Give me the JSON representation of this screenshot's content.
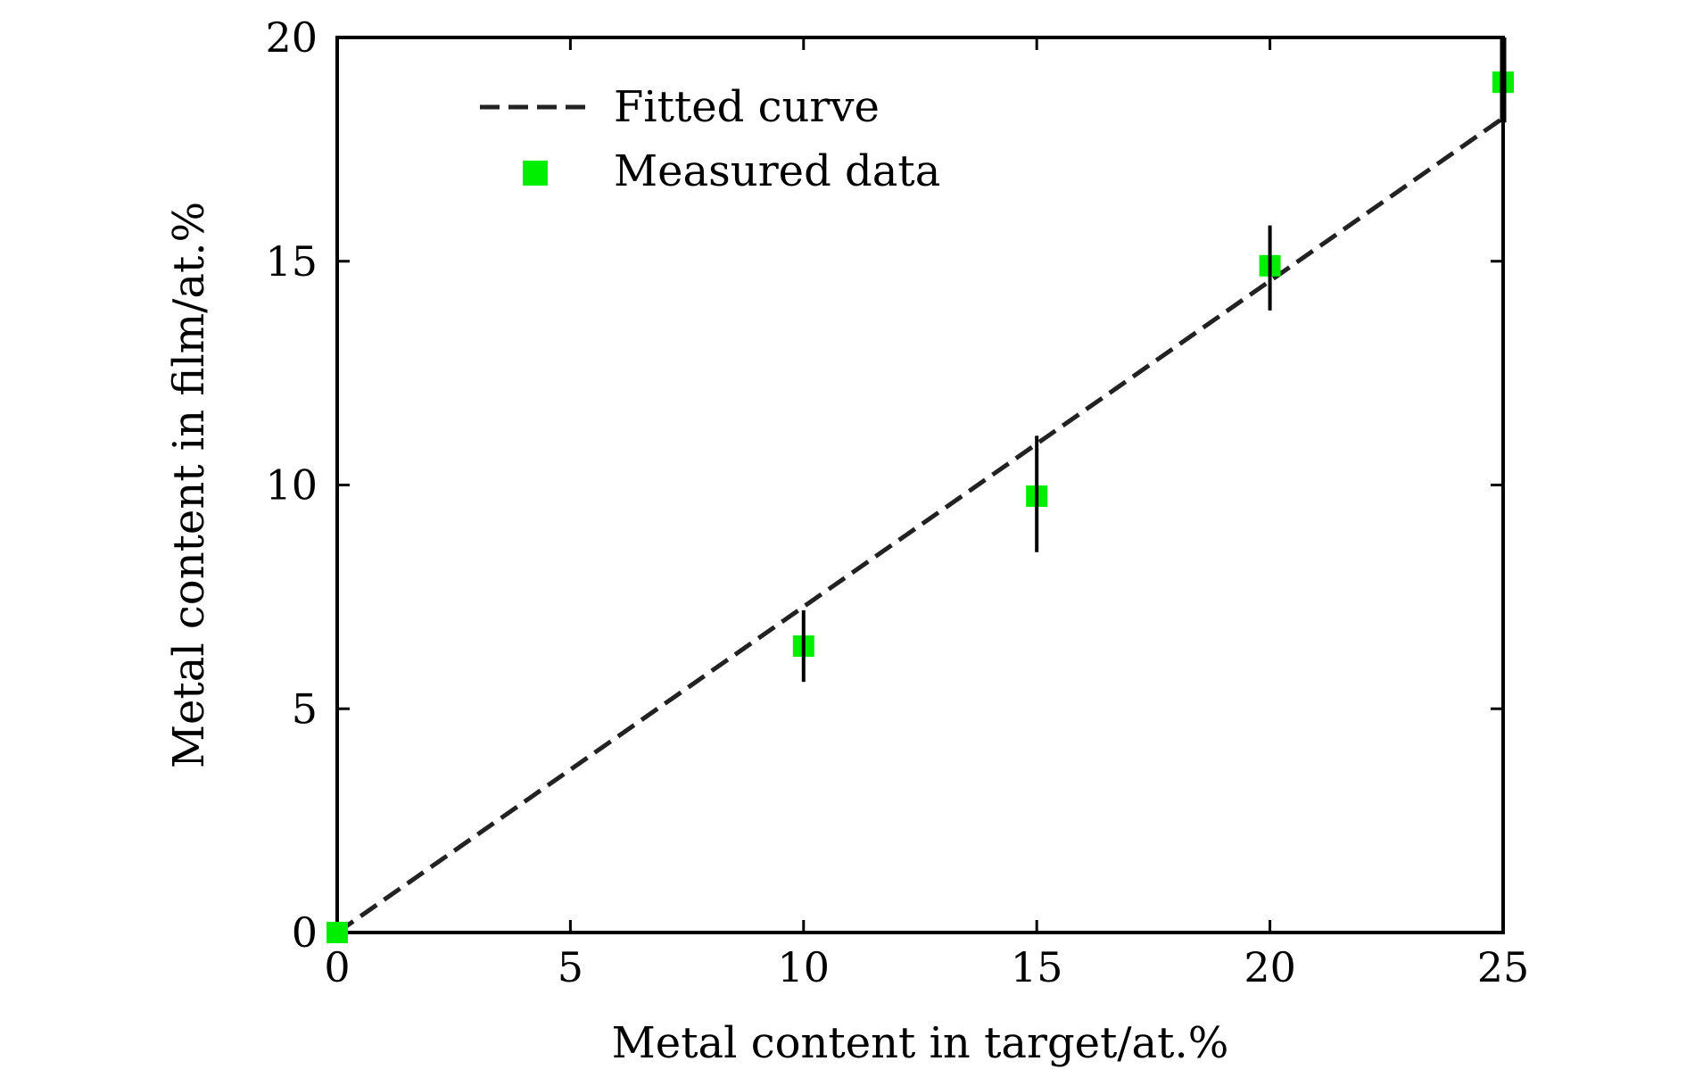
{
  "chart_data": {
    "type": "scatter",
    "xlabel": "Metal content in target/at.%",
    "ylabel": "Metal content in film/at.%",
    "xlim": [
      0,
      25
    ],
    "ylim": [
      0,
      20
    ],
    "xticks": [
      0,
      5,
      10,
      15,
      20,
      25
    ],
    "yticks": [
      0,
      5,
      10,
      15,
      20
    ],
    "xtick_labels": [
      "0",
      "5",
      "10",
      "15",
      "20",
      "25"
    ],
    "ytick_labels": [
      "0",
      "5",
      "10",
      "15",
      "20"
    ],
    "grid": false,
    "legend_position": "top-left",
    "series": [
      {
        "name": "Fitted curve",
        "type": "line",
        "style": "dashed",
        "color": "#000000",
        "x": [
          0,
          25
        ],
        "y": [
          0,
          18.2
        ]
      },
      {
        "name": "Measured data",
        "type": "scatter",
        "marker": "square",
        "color": "#00ee00",
        "x": [
          0,
          10,
          15,
          20,
          25
        ],
        "y": [
          0,
          6.4,
          9.75,
          14.9,
          19.0
        ],
        "error_low": [
          0,
          5.6,
          8.5,
          13.9,
          18.1
        ],
        "error_high": [
          0,
          7.2,
          11.1,
          15.8,
          20.0
        ]
      }
    ]
  }
}
